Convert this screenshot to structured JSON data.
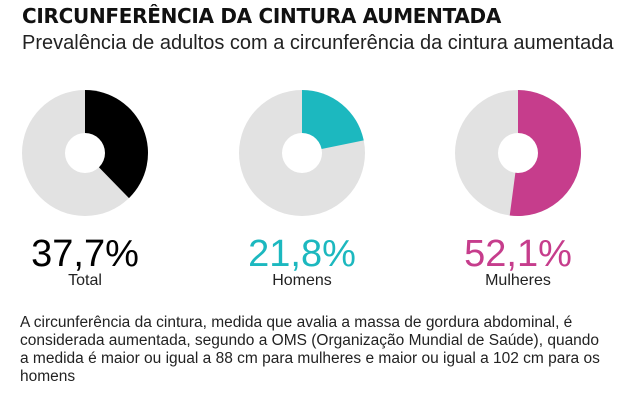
{
  "chart_data": [
    {
      "type": "pie",
      "title": "CIRCUNFERÊNCIA DA CINTURA AUMENTADA",
      "subtitle": "Prevalência de adultos com a circunferência da cintura aumentada",
      "series": [
        {
          "name": "Total",
          "value": 37.7,
          "label": "37,7%",
          "color": "#000000"
        },
        {
          "name": "Homens",
          "value": 21.8,
          "label": "21,8%",
          "color": "#1cb8bf"
        },
        {
          "name": "Mulheres",
          "value": 52.1,
          "label": "52,1%",
          "color": "#c63d8c"
        }
      ],
      "remainder_color": "#e2e2e2"
    }
  ],
  "note": "A circunferência da cintura, medida que avalia a massa de gordura abdominal, é considerada aumentada, segundo a OMS (Organização Mundial de Saúde), quando a medida é maior ou igual a 88 cm para mulheres e maior ou igual a 102 cm para os homens"
}
